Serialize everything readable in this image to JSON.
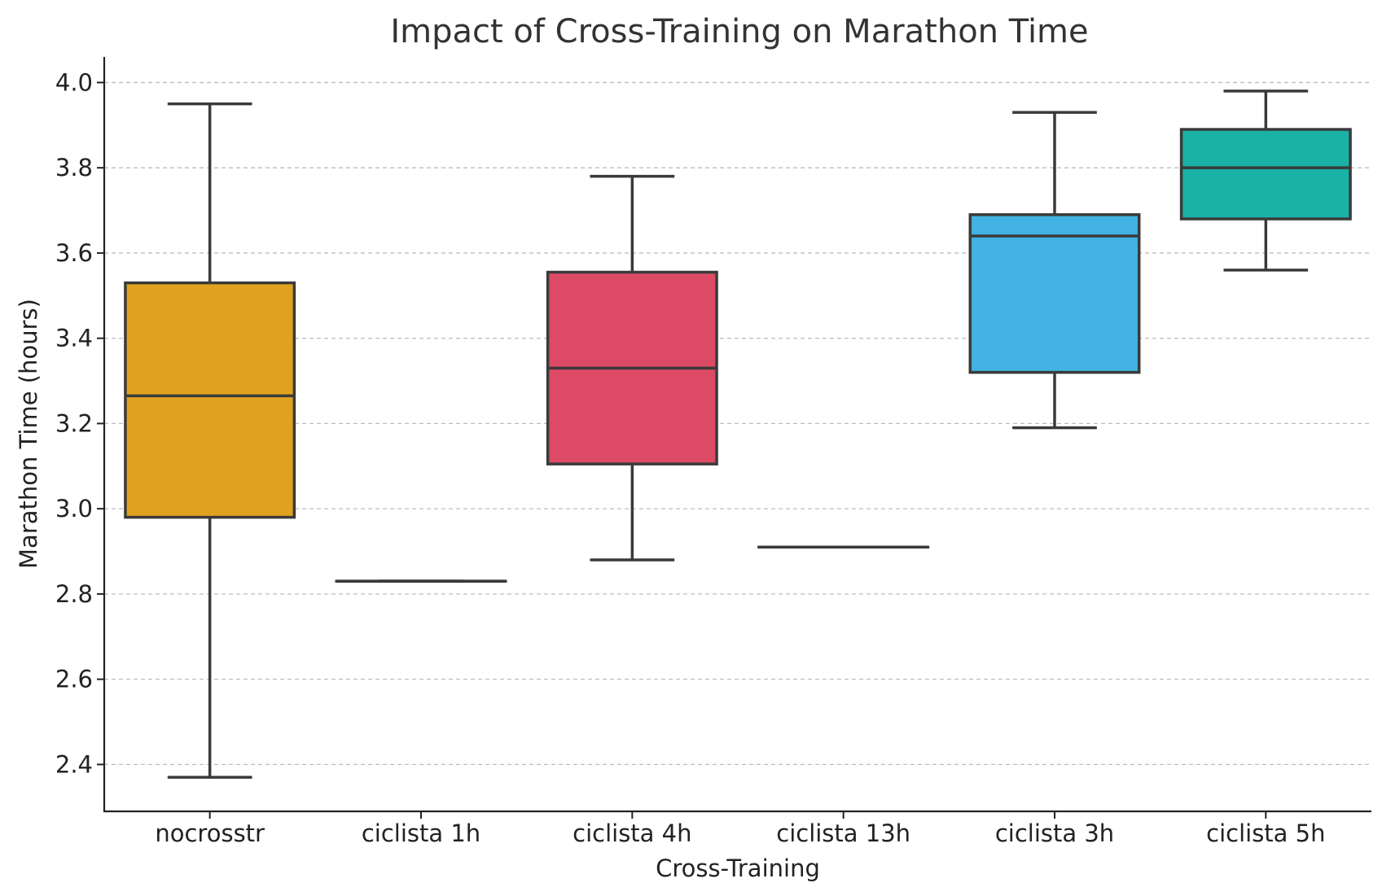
{
  "chart_data": {
    "type": "box",
    "title": "Impact of Cross-Training on Marathon Time",
    "xlabel": "Cross-Training",
    "ylabel": "Marathon Time (hours)",
    "ylim": [
      2.29,
      4.06
    ],
    "yticks": [
      2.4,
      2.6,
      2.8,
      3.0,
      3.2,
      3.4,
      3.6,
      3.8,
      4.0
    ],
    "ytick_labels": [
      "2.4",
      "2.6",
      "2.8",
      "3.0",
      "3.2",
      "3.4",
      "3.6",
      "3.8",
      "4.0"
    ],
    "grid": "y-dashed",
    "categories": [
      "nocrosstr",
      "ciclista 1h",
      "ciclista 4h",
      "ciclista 13h",
      "ciclista 3h",
      "ciclista 5h"
    ],
    "boxes": [
      {
        "category": "nocrosstr",
        "whisker_low": 2.37,
        "q1": 2.98,
        "median": 3.265,
        "q3": 3.53,
        "whisker_high": 3.95,
        "color": "#E1A21F"
      },
      {
        "category": "ciclista 1h",
        "whisker_low": 2.83,
        "q1": 2.83,
        "median": 2.83,
        "q3": 2.83,
        "whisker_high": 2.83,
        "color": "#E1A21F"
      },
      {
        "category": "ciclista 4h",
        "whisker_low": 2.88,
        "q1": 3.105,
        "median": 3.33,
        "q3": 3.555,
        "whisker_high": 3.78,
        "color": "#DC4A66"
      },
      {
        "category": "ciclista 13h",
        "whisker_low": 2.91,
        "q1": 2.91,
        "median": 2.91,
        "q3": 2.91,
        "whisker_high": 2.91,
        "color": "#DC4A66"
      },
      {
        "category": "ciclista 3h",
        "whisker_low": 3.19,
        "q1": 3.32,
        "median": 3.64,
        "q3": 3.69,
        "whisker_high": 3.93,
        "color": "#42B2E2"
      },
      {
        "category": "ciclista 5h",
        "whisker_low": 3.56,
        "q1": 3.68,
        "median": 3.8,
        "q3": 3.89,
        "whisker_high": 3.98,
        "color": "#1AB2A6"
      }
    ]
  }
}
